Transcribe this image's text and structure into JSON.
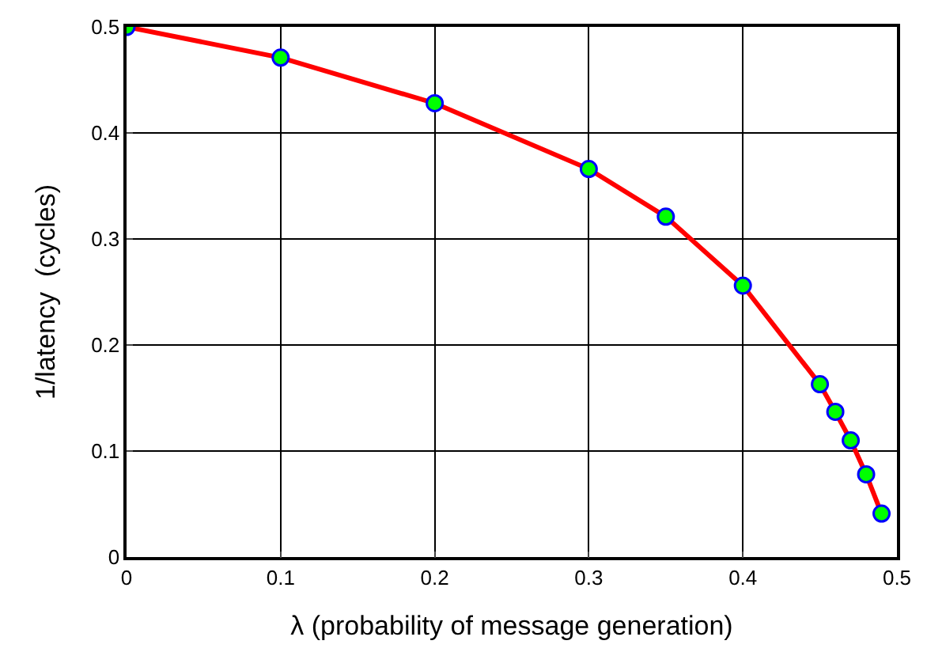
{
  "chart_data": {
    "type": "line",
    "xlabel": "λ (probability of message generation)",
    "ylabel": "1/latency  (cycles)",
    "x": [
      0,
      0.1,
      0.2,
      0.3,
      0.35,
      0.4,
      0.45,
      0.46,
      0.47,
      0.48,
      0.49
    ],
    "series": [
      {
        "color": "#ff0000",
        "values": [
          0.5,
          0.471,
          0.428,
          0.366,
          0.321,
          0.256,
          0.163,
          0.137,
          0.11,
          0.078,
          0.041
        ]
      }
    ],
    "xlim": [
      0,
      0.5
    ],
    "xticks": [
      0,
      0.1,
      0.2,
      0.3,
      0.4,
      0.5
    ],
    "ylim": [
      0,
      0.5
    ],
    "yticks": [
      0,
      0.1,
      0.2,
      0.3,
      0.4,
      0.5
    ],
    "grid": true,
    "marker": "circle",
    "line_style": "solid"
  }
}
